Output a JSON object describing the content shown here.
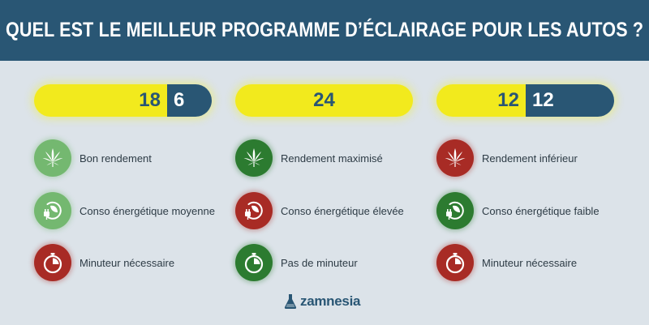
{
  "title": "QUEL EST LE MEILLEUR PROGRAMME D’ÉCLAIRAGE POUR LES AUTOS ?",
  "colors": {
    "header_bg": "#295674",
    "page_bg": "#dce3e9",
    "light_hours": "#f2ea1d",
    "dark_hours": "#295674",
    "good_light": "#74b870",
    "good_dark": "#2c7b30",
    "bad": "#a82b25"
  },
  "schedules": [
    {
      "light": "18",
      "dark": "6",
      "light_fraction": 0.75,
      "features": [
        {
          "icon": "cannabis-leaf-icon",
          "rating": "light-green",
          "text": "Bon rendement"
        },
        {
          "icon": "energy-plug-icon",
          "rating": "light-green",
          "text": "Conso énergétique moyenne"
        },
        {
          "icon": "timer-icon",
          "rating": "red",
          "text": "Minuteur nécessaire"
        }
      ]
    },
    {
      "light": "24",
      "dark": "",
      "light_fraction": 1.0,
      "features": [
        {
          "icon": "cannabis-leaf-icon",
          "rating": "dark-green",
          "text": "Rendement maximisé"
        },
        {
          "icon": "energy-plug-icon",
          "rating": "red",
          "text": "Conso énergétique élevée"
        },
        {
          "icon": "timer-icon",
          "rating": "dark-green",
          "text": "Pas de minuteur"
        }
      ]
    },
    {
      "light": "12",
      "dark": "12",
      "light_fraction": 0.5,
      "features": [
        {
          "icon": "cannabis-leaf-icon",
          "rating": "red",
          "text": "Rendement inférieur"
        },
        {
          "icon": "energy-plug-icon",
          "rating": "dark-green",
          "text": "Conso énergétique faible"
        },
        {
          "icon": "timer-icon",
          "rating": "red",
          "text": "Minuteur nécessaire"
        }
      ]
    }
  ],
  "brand": "zamnesia"
}
